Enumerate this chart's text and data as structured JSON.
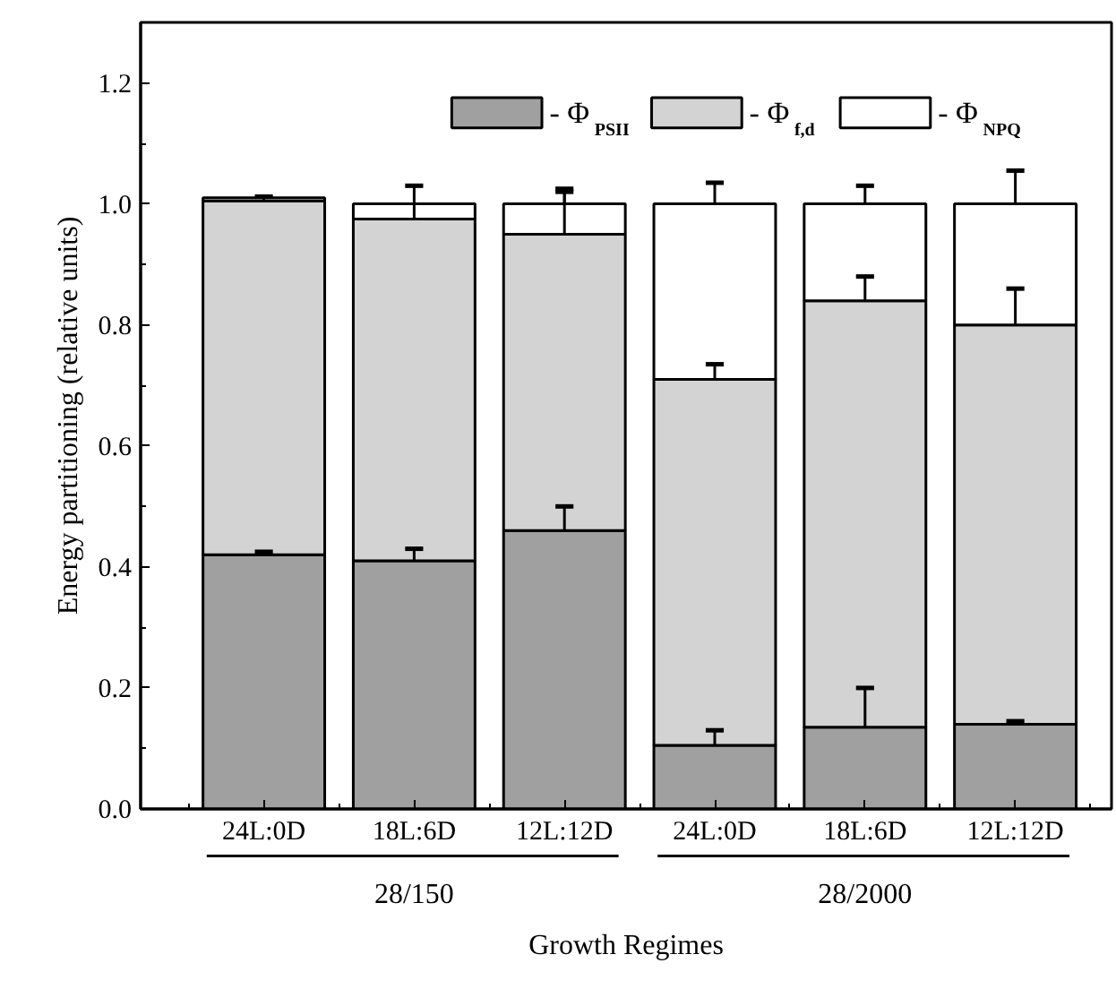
{
  "chart_data": {
    "type": "bar",
    "stacked": true,
    "xlabel": "Growth Regimes",
    "ylabel": "Energy partitioning (relative units)",
    "categories": [
      "24L:0D",
      "18L:6D",
      "12L:12D",
      "24L:0D",
      "18L:6D",
      "12L:12D"
    ],
    "annotations": [
      "28/150",
      "28/2000"
    ],
    "ylim": [
      0,
      1.3
    ],
    "yticks": [
      {
        "value": 0,
        "label": "0.0"
      },
      {
        "value": 0.2,
        "label": "0.2"
      },
      {
        "value": 0.4,
        "label": "0.4"
      },
      {
        "value": 0.6,
        "label": "0.6"
      },
      {
        "value": 0.8,
        "label": "0.8"
      },
      {
        "value": 1,
        "label": "1.0"
      },
      {
        "value": 1.2,
        "label": "1.2"
      }
    ],
    "legend": "top",
    "grid": false,
    "series": [
      {
        "name": "- Φ$_{PSII}$",
        "color": "#a0a0a0",
        "values": [
          0.42,
          0.41,
          0.46,
          0.105,
          0.135,
          0.14
        ],
        "errors": [
          [
            0.42,
            0.425
          ],
          [
            0.41,
            0.43
          ],
          [
            0.46,
            0.5
          ],
          [
            0.105,
            0.13
          ],
          [
            0.135,
            0.2
          ],
          [
            0.14,
            0.145
          ]
        ]
      },
      {
        "name": "- Φ$_{f,d}$",
        "color": "#d3d3d3",
        "values": [
          0.585,
          0.565,
          0.49,
          0.605,
          0.705,
          0.66
        ],
        "errors": [
          [
            1.005,
            1.012
          ],
          [
            0.975,
            1.03
          ],
          [
            0.95,
            1.02
          ],
          [
            0.71,
            0.735
          ],
          [
            0.84,
            0.88
          ],
          [
            0.8,
            0.86
          ]
        ]
      },
      {
        "name": "- Φ$_{NPQ}$",
        "color": "#ffffff",
        "values": [
          0.005,
          0.025,
          0.05,
          0.29,
          0.16,
          0.2
        ],
        "errors": [
          null,
          null,
          [
            1.0,
            1.025
          ],
          [
            1.0,
            1.035
          ],
          [
            1.0,
            1.03
          ],
          [
            1.0,
            1.055
          ]
        ]
      }
    ]
  }
}
